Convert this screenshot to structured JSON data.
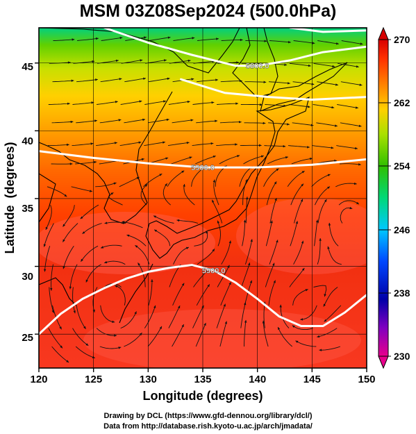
{
  "title": "MSM 03Z08Sep2024 (500.0hPa)",
  "axes": {
    "xlabel": "Longitude (degrees)",
    "ylabel": "Latitude  (degrees)",
    "xticks": [
      "120",
      "125",
      "130",
      "135",
      "140",
      "145",
      "150"
    ],
    "yticks": [
      "25",
      "30",
      "35",
      "40",
      "45"
    ],
    "xrange": [
      120,
      150
    ],
    "yrange": [
      22.5,
      47.6
    ]
  },
  "colorbar": {
    "labels": [
      "270",
      "262",
      "254",
      "246",
      "238",
      "230"
    ],
    "min": 230,
    "max": 270,
    "colors": [
      "#e8008c",
      "#8000c0",
      "#0000a8",
      "#0048ff",
      "#00c8ff",
      "#00d878",
      "#30c000",
      "#a8e000",
      "#ffd000",
      "#ff8000",
      "#ff3000",
      "#d80000"
    ]
  },
  "contours": [
    {
      "label": "5900.0",
      "points": [
        [
          120,
          38.5
        ],
        [
          125,
          38.0
        ],
        [
          130,
          37.6
        ],
        [
          135,
          37.3
        ],
        [
          140,
          37.3
        ],
        [
          145,
          37.5
        ],
        [
          150,
          37.9
        ]
      ]
    },
    {
      "label": "5800.0",
      "points": [
        [
          126,
          47.6
        ],
        [
          130,
          46.5
        ],
        [
          134,
          45.6
        ],
        [
          138,
          44.8
        ],
        [
          140,
          44.8
        ],
        [
          143,
          45.2
        ],
        [
          146,
          45.8
        ],
        [
          150,
          46.2
        ]
      ]
    },
    {
      "label": "",
      "points": [
        [
          133,
          43.8
        ],
        [
          137,
          42.8
        ],
        [
          141,
          42.5
        ],
        [
          145,
          42.3
        ],
        [
          150,
          42.5
        ]
      ]
    },
    {
      "label": "",
      "points": [
        [
          143,
          47.6
        ],
        [
          146,
          47.3
        ],
        [
          150,
          47.4
        ]
      ]
    },
    {
      "label": "5900.0",
      "points": [
        [
          120,
          25.0
        ],
        [
          122,
          26.5
        ],
        [
          124,
          27.6
        ],
        [
          126,
          28.4
        ],
        [
          128,
          29.1
        ],
        [
          130,
          29.6
        ],
        [
          132,
          29.9
        ],
        [
          134,
          30.1
        ],
        [
          136,
          29.7
        ],
        [
          138,
          28.8
        ],
        [
          140,
          27.6
        ],
        [
          142,
          26.3
        ],
        [
          144,
          25.6
        ],
        [
          146,
          25.6
        ],
        [
          148,
          26.6
        ],
        [
          150,
          27.9
        ]
      ]
    }
  ],
  "footer": {
    "line1": "Drawing by DCL (https://www.gfd-dennou.org/library/dcl/)",
    "line2": "Data from http://database.rish.kyoto-u.ac.jp/arch/jmadata/"
  }
}
